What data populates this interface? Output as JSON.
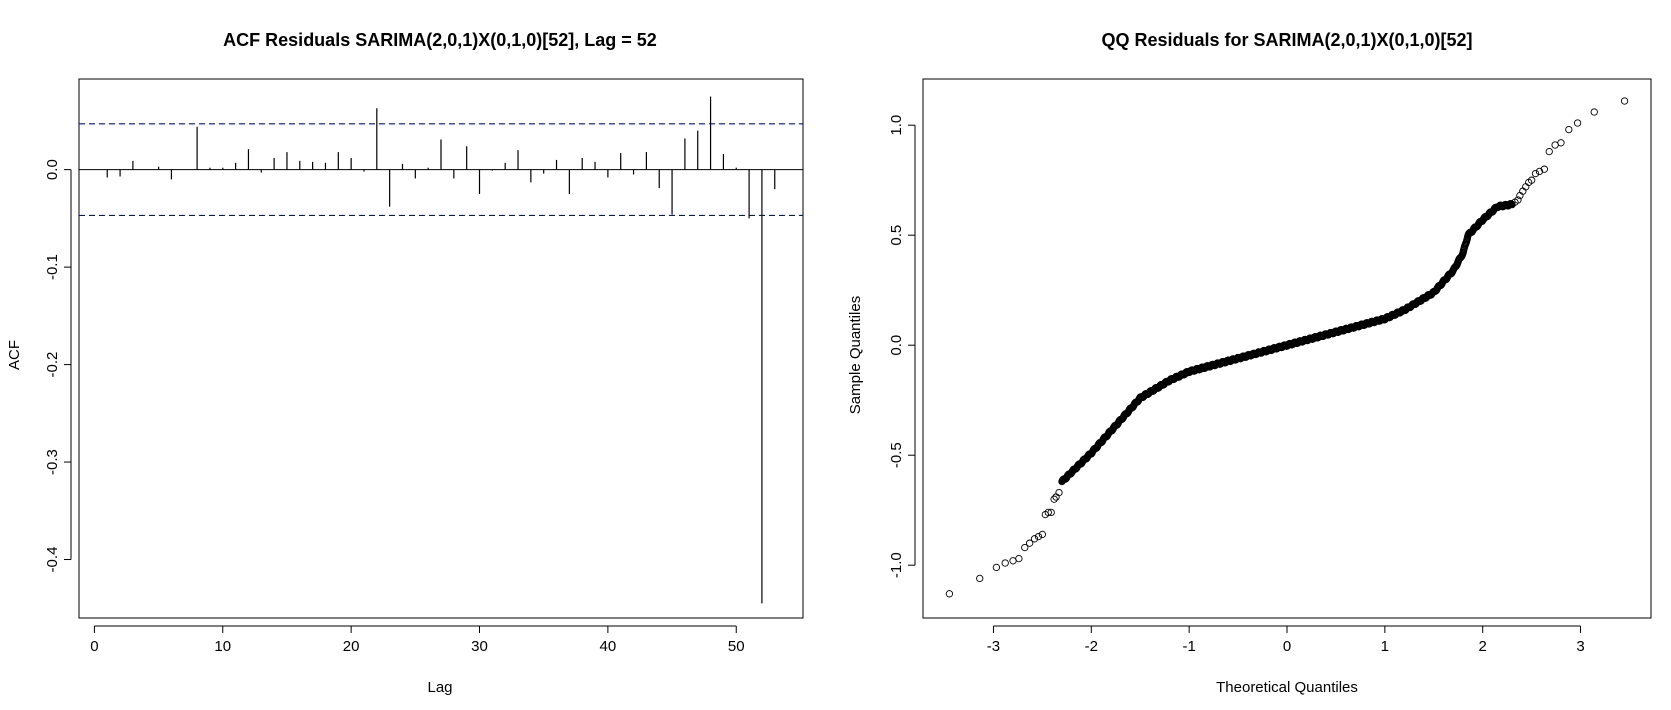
{
  "chart_data": [
    {
      "type": "bar",
      "title": "ACF Residuals SARIMA(2,0,1)X(0,1,0)[52], Lag = 52",
      "xlabel": "Lag",
      "ylabel": "ACF",
      "xlim": [
        -1.2,
        55.2
      ],
      "ylim": [
        -0.46,
        0.093
      ],
      "xticks": [
        0,
        10,
        20,
        30,
        40,
        50
      ],
      "yticks": [
        -0.4,
        -0.3,
        -0.2,
        -0.1,
        0.0
      ],
      "ytick_labels": [
        "-0.4",
        "-0.3",
        "-0.2",
        "-0.1",
        "0.0"
      ],
      "ci_bound": 0.047,
      "ci_color": "#0000ff",
      "lags": [
        1,
        2,
        3,
        4,
        5,
        6,
        7,
        8,
        9,
        10,
        11,
        12,
        13,
        14,
        15,
        16,
        17,
        18,
        19,
        20,
        21,
        22,
        23,
        24,
        25,
        26,
        27,
        28,
        29,
        30,
        31,
        32,
        33,
        34,
        35,
        36,
        37,
        38,
        39,
        40,
        41,
        42,
        43,
        44,
        45,
        46,
        47,
        48,
        49,
        50,
        51,
        52,
        53
      ],
      "values": [
        -0.008,
        -0.007,
        0.009,
        0.0,
        0.003,
        -0.01,
        0.0,
        0.044,
        0.002,
        0.002,
        0.007,
        0.021,
        -0.003,
        0.012,
        0.018,
        0.009,
        0.008,
        0.007,
        0.018,
        0.012,
        -0.002,
        0.063,
        -0.038,
        0.006,
        -0.009,
        0.002,
        0.031,
        -0.009,
        0.024,
        -0.025,
        -0.001,
        0.007,
        0.02,
        -0.013,
        -0.004,
        0.01,
        -0.025,
        0.012,
        0.008,
        -0.008,
        0.017,
        -0.005,
        0.018,
        -0.019,
        -0.046,
        0.032,
        0.04,
        0.075,
        0.016,
        0.002,
        -0.05,
        -0.445,
        -0.02
      ]
    },
    {
      "type": "scatter",
      "title": "QQ Residuals for SARIMA(2,0,1)X(0,1,0)[52]",
      "xlabel": "Theoretical Quantiles",
      "ylabel": "Sample Quantiles",
      "xlim": [
        -3.72,
        3.72
      ],
      "ylim": [
        -1.24,
        1.21
      ],
      "xticks": [
        -3,
        -2,
        -1,
        0,
        1,
        2,
        3
      ],
      "yticks": [
        -1.0,
        -0.5,
        0.0,
        0.5,
        1.0
      ],
      "ytick_labels": [
        "-1.0",
        "-0.5",
        "0.0",
        "0.5",
        "1.0"
      ],
      "marker": "open-circle",
      "outer_points": {
        "x": [
          -3.45,
          -3.14,
          -2.97,
          -2.88,
          -2.8,
          -2.74,
          -2.68,
          -2.63,
          -2.58,
          -2.54,
          -2.5,
          -2.47,
          -2.44,
          -2.41,
          -2.38,
          -2.36,
          -2.33,
          2.33,
          2.36,
          2.38,
          2.41,
          2.44,
          2.47,
          2.5,
          2.54,
          2.58,
          2.63,
          2.68,
          2.74,
          2.8,
          2.88,
          2.97,
          3.14,
          3.45
        ],
        "y": [
          -1.13,
          -1.06,
          -1.01,
          -0.99,
          -0.98,
          -0.97,
          -0.92,
          -0.9,
          -0.88,
          -0.87,
          -0.86,
          -0.77,
          -0.76,
          -0.76,
          -0.7,
          -0.69,
          -0.67,
          0.65,
          0.66,
          0.68,
          0.7,
          0.72,
          0.74,
          0.75,
          0.78,
          0.79,
          0.8,
          0.88,
          0.91,
          0.92,
          0.98,
          1.01,
          1.06,
          1.11
        ]
      },
      "curve_quantiles": [
        {
          "x": -2.3,
          "y": -0.62
        },
        {
          "x": -2.0,
          "y": -0.49
        },
        {
          "x": -1.7,
          "y": -0.34
        },
        {
          "x": -1.5,
          "y": -0.24
        },
        {
          "x": -1.2,
          "y": -0.16
        },
        {
          "x": -1.0,
          "y": -0.12
        },
        {
          "x": -0.5,
          "y": -0.06
        },
        {
          "x": 0.0,
          "y": 0.0
        },
        {
          "x": 0.5,
          "y": 0.06
        },
        {
          "x": 1.0,
          "y": 0.12
        },
        {
          "x": 1.2,
          "y": 0.16
        },
        {
          "x": 1.5,
          "y": 0.24
        },
        {
          "x": 1.7,
          "y": 0.34
        },
        {
          "x": 1.8,
          "y": 0.42
        },
        {
          "x": 1.85,
          "y": 0.5
        },
        {
          "x": 2.0,
          "y": 0.57
        },
        {
          "x": 2.15,
          "y": 0.63
        },
        {
          "x": 2.3,
          "y": 0.64
        }
      ],
      "curve_point_count": 1300
    }
  ]
}
